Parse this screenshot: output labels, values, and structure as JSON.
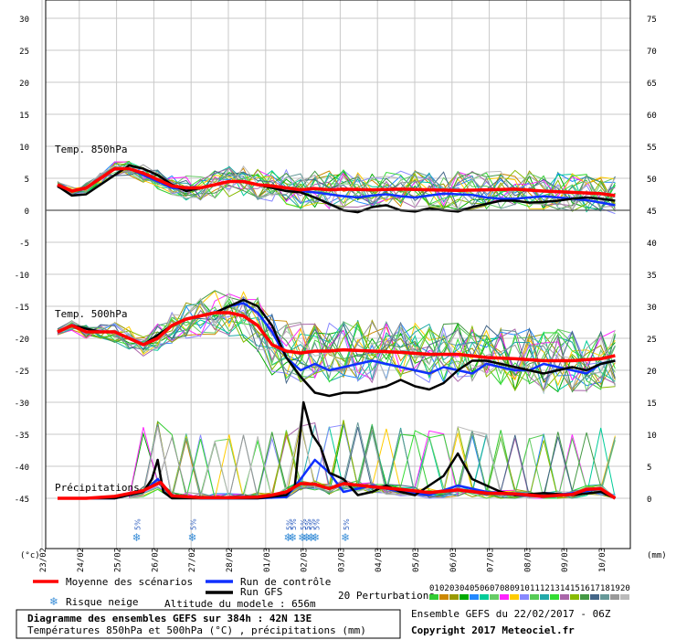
{
  "chart_data": {
    "type": "line",
    "left_axis_label": "(°c)",
    "right_axis_label": "(mm)",
    "left_ticks": [
      30,
      25,
      20,
      15,
      10,
      5,
      0,
      -5,
      -10,
      -15,
      -20,
      -25,
      -30,
      -35,
      -40,
      -45
    ],
    "right_ticks": [
      75,
      70,
      65,
      60,
      55,
      50,
      45,
      40,
      35,
      30,
      25,
      20,
      15,
      10,
      5,
      0
    ],
    "left_ylim": [
      -45,
      30
    ],
    "right_ylim": [
      0,
      75
    ],
    "x_dates": [
      "23/02",
      "24/02",
      "25/02",
      "26/02",
      "27/02",
      "28/02",
      "01/03",
      "02/03",
      "03/03",
      "04/03",
      "05/03",
      "06/03",
      "07/03",
      "08/03",
      "09/03",
      "10/03"
    ],
    "section_labels": [
      "Temp. 850hPa",
      "Temp. 500hPa",
      "Précipitations"
    ],
    "snow_risk": [
      {
        "x": 4.6,
        "label": "5%"
      },
      {
        "x": 8.5,
        "label": "5%"
      },
      {
        "x": 15.2,
        "label": "5%"
      },
      {
        "x": 15.5,
        "label": "5%"
      },
      {
        "x": 16.2,
        "label": "5%"
      },
      {
        "x": 16.5,
        "label": "5%"
      },
      {
        "x": 16.8,
        "label": "5%"
      },
      {
        "x": 17.1,
        "label": "5%"
      },
      {
        "x": 19.2,
        "label": "5%"
      }
    ],
    "series": [
      {
        "name": "Moyenne des scénarios",
        "color": "#ff0000",
        "group": "t850",
        "x": [
          0,
          0.5,
          1,
          1.5,
          2,
          2.5,
          3,
          3.5,
          4,
          4.5,
          5,
          5.5,
          6,
          6.5,
          7,
          7.5,
          8,
          8.5,
          9,
          9.5,
          10,
          11,
          12,
          13,
          14,
          15,
          16,
          17,
          18,
          19,
          19.5
        ],
        "values": [
          4,
          3,
          3.5,
          5,
          6.5,
          6.5,
          5.8,
          4.8,
          3.8,
          3.5,
          3.5,
          4,
          4.5,
          4.5,
          4,
          3.8,
          3.5,
          3.2,
          3.4,
          3.2,
          3.3,
          3.2,
          3.3,
          3.2,
          3.1,
          3.2,
          3.3,
          3,
          2.8,
          2.6,
          2.3
        ]
      },
      {
        "name": "Run GFS",
        "color": "#000000",
        "group": "t850",
        "x": [
          0,
          0.5,
          1,
          1.5,
          2,
          2.5,
          3,
          3.5,
          4,
          4.5,
          5,
          5.5,
          6,
          6.5,
          7,
          7.5,
          8,
          8.5,
          9,
          9.5,
          10,
          10.5,
          11,
          11.5,
          12,
          12.5,
          13,
          13.5,
          14,
          14.5,
          15,
          15.5,
          16,
          16.5,
          17,
          17.5,
          18,
          18.5,
          19,
          19.5
        ],
        "values": [
          3.8,
          2.3,
          2.5,
          4,
          5.5,
          7,
          6.5,
          5.5,
          4,
          3,
          3.5,
          4,
          4.5,
          4.5,
          4,
          3.5,
          3,
          2.8,
          2,
          1,
          0,
          -0.3,
          0.5,
          0.8,
          0,
          -0.2,
          0.3,
          0,
          -0.2,
          0.5,
          1,
          1.5,
          1.5,
          1.2,
          1.3,
          1.5,
          1.8,
          2,
          1.8,
          1.5
        ]
      },
      {
        "name": "Run de contrôle",
        "color": "#1030ff",
        "group": "t850",
        "x": [
          0,
          0.5,
          1,
          1.5,
          2,
          2.5,
          3,
          3.5,
          4,
          4.5,
          5,
          5.5,
          6,
          6.5,
          7,
          7.5,
          8,
          8.5,
          9,
          9.5,
          10,
          10.5,
          11,
          11.5,
          12,
          12.5,
          13,
          13.5,
          14,
          14.5,
          15,
          15.5,
          16,
          16.5,
          17,
          17.5,
          18,
          18.5,
          19,
          19.5
        ],
        "values": [
          4,
          3,
          3.5,
          5,
          6.5,
          6.5,
          5.5,
          4.5,
          3.5,
          3.3,
          3.5,
          4,
          4.5,
          4.5,
          4,
          3.8,
          3.5,
          3,
          2.8,
          2.5,
          2.2,
          2,
          2.3,
          2.5,
          2.2,
          2,
          2.3,
          2.6,
          2.5,
          2.4,
          2,
          1.8,
          1.8,
          2,
          2.2,
          2,
          1.8,
          1.6,
          1.2,
          0.8
        ]
      },
      {
        "name": "Moyenne des scénarios",
        "color": "#ff0000",
        "group": "t500",
        "x": [
          0,
          0.5,
          1,
          1.5,
          2,
          2.5,
          3,
          3.5,
          4,
          4.5,
          5,
          5.5,
          6,
          6.5,
          7,
          7.5,
          8,
          8.5,
          9,
          9.5,
          10,
          11,
          12,
          13,
          14,
          15,
          16,
          17,
          18,
          19,
          19.5
        ],
        "values": [
          -19,
          -18,
          -19,
          -19,
          -19,
          -20,
          -21,
          -20,
          -18,
          -17,
          -16.5,
          -16,
          -16,
          -16.5,
          -18,
          -21,
          -22,
          -22.3,
          -22,
          -22,
          -21.8,
          -22,
          -22.2,
          -22.5,
          -22.5,
          -23,
          -23.2,
          -23.5,
          -23.5,
          -23.2,
          -22.7
        ]
      },
      {
        "name": "Run GFS",
        "color": "#000000",
        "group": "t500",
        "x": [
          0,
          0.5,
          1,
          1.5,
          2,
          2.5,
          3,
          3.5,
          4,
          4.5,
          5,
          5.5,
          6,
          6.5,
          7,
          7.5,
          8,
          8.5,
          9,
          9.5,
          10,
          10.5,
          11,
          11.5,
          12,
          12.5,
          13,
          13.5,
          14,
          14.5,
          15,
          15.5,
          16,
          16.5,
          17,
          17.5,
          18,
          18.5,
          19,
          19.5
        ],
        "values": [
          -19,
          -18,
          -18.5,
          -19,
          -19,
          -20,
          -21,
          -19.5,
          -18,
          -17,
          -16.5,
          -16,
          -15,
          -14,
          -15,
          -18,
          -23,
          -26,
          -28.5,
          -29,
          -28.5,
          -28.5,
          -28,
          -27.5,
          -26.5,
          -27.5,
          -28,
          -27,
          -25,
          -23.5,
          -23.5,
          -24,
          -24.5,
          -25,
          -25.5,
          -25,
          -24.5,
          -25,
          -24,
          -23.5
        ]
      },
      {
        "name": "Run de contrôle",
        "color": "#1030ff",
        "group": "t500",
        "x": [
          0,
          0.5,
          1,
          1.5,
          2,
          2.5,
          3,
          3.5,
          4,
          4.5,
          5,
          5.5,
          6,
          6.5,
          7,
          7.5,
          8,
          8.5,
          9,
          9.5,
          10,
          10.5,
          11,
          11.5,
          12,
          12.5,
          13,
          13.5,
          14,
          14.5,
          15,
          15.5,
          16,
          16.5,
          17,
          17.5,
          18,
          18.5,
          19,
          19.5
        ],
        "values": [
          -19,
          -18,
          -18.5,
          -19,
          -19,
          -20,
          -21,
          -19.5,
          -18,
          -17,
          -16.5,
          -16,
          -15,
          -14.5,
          -16,
          -19,
          -23,
          -25,
          -24,
          -25,
          -24.5,
          -24,
          -23.5,
          -24,
          -24.5,
          -25,
          -25.5,
          -24.5,
          -25,
          -25.5,
          -24,
          -24.5,
          -25,
          -25,
          -24,
          -24.5,
          -25,
          -25.5,
          -24,
          -23.5
        ]
      },
      {
        "name": "Moyenne des scénarios",
        "color": "#ff0000",
        "group": "precip",
        "x": [
          0,
          1,
          2,
          3,
          3.6,
          4,
          5,
          6,
          7,
          7.5,
          8,
          8.5,
          9,
          9.5,
          10,
          11,
          12,
          13,
          14,
          15,
          16,
          17,
          18,
          18.5,
          19,
          19.5
        ],
        "values": [
          0,
          0,
          0.3,
          1.2,
          2.5,
          0.4,
          0.1,
          0.1,
          0.2,
          0.5,
          1,
          2.3,
          2.2,
          1.5,
          2.3,
          1.8,
          1.4,
          0.9,
          1.3,
          0.8,
          0.7,
          0.3,
          0.6,
          1.4,
          1.5,
          0
        ]
      },
      {
        "name": "Run GFS",
        "color": "#000000",
        "group": "precip",
        "x": [
          0,
          1,
          2,
          3,
          3.3,
          3.5,
          3.7,
          4,
          5,
          6,
          7,
          8,
          8.3,
          8.6,
          8.9,
          9.2,
          9.5,
          10,
          10.5,
          11,
          11.5,
          12,
          12.5,
          13,
          13.5,
          14,
          14.5,
          15,
          15.5,
          16,
          17,
          18,
          19,
          19.5
        ],
        "values": [
          0,
          0,
          0,
          1,
          3,
          6,
          1,
          0,
          0,
          0,
          0,
          0.5,
          2,
          15,
          10,
          8,
          4,
          3,
          0.5,
          1,
          2,
          1,
          0.5,
          2,
          3.5,
          7,
          3,
          2,
          1,
          0.5,
          0.8,
          0.5,
          1,
          0
        ]
      },
      {
        "name": "Run de contrôle",
        "color": "#1030ff",
        "group": "precip",
        "x": [
          0,
          1,
          2,
          3,
          3.5,
          4,
          5,
          6,
          7,
          8,
          8.5,
          9,
          9.5,
          10,
          11,
          12,
          13,
          14,
          15,
          16,
          17,
          18,
          19,
          19.5
        ],
        "values": [
          0,
          0,
          0,
          1,
          3,
          0.5,
          0,
          0,
          0,
          0.2,
          3,
          6,
          4,
          1,
          2,
          1,
          0.5,
          2,
          1,
          0.5,
          0.3,
          0.8,
          1.5,
          0
        ]
      }
    ],
    "perturbations": {
      "count": 20
    }
  },
  "legend": {
    "mean": "Moyenne des scénarios",
    "control": "Run de contrôle",
    "gfs": "Run GFS",
    "perturbations": "20 Perturbations",
    "snow": "Risque neige",
    "altitude": "Altitude du modele : 656m",
    "swatch_numbers": [
      "01",
      "02",
      "03",
      "04",
      "05",
      "06",
      "07",
      "08",
      "09",
      "10",
      "11",
      "12",
      "13",
      "14",
      "15",
      "16",
      "17",
      "18",
      "19",
      "20"
    ],
    "swatch_colors": [
      "#33cc33",
      "#cc8800",
      "#999900",
      "#00aa00",
      "#2288ff",
      "#00cc99",
      "#66cc66",
      "#ff22ff",
      "#ffcc00",
      "#8888ff",
      "#55cc55",
      "#22aaaa",
      "#33dd33",
      "#aa66aa",
      "#88bb00",
      "#449944",
      "#446688",
      "#669999",
      "#999999",
      "#bbbbbb"
    ]
  },
  "info": {
    "title": "Diagramme des ensembles GEFS sur 384h : 42N 13E",
    "subtitle": "Températures 850hPa et 500hPa (°C) , précipitations (mm)",
    "run": "Ensemble GEFS du 22/02/2017 - 06Z",
    "copyright": "Copyright 2017 Meteociel.fr"
  }
}
